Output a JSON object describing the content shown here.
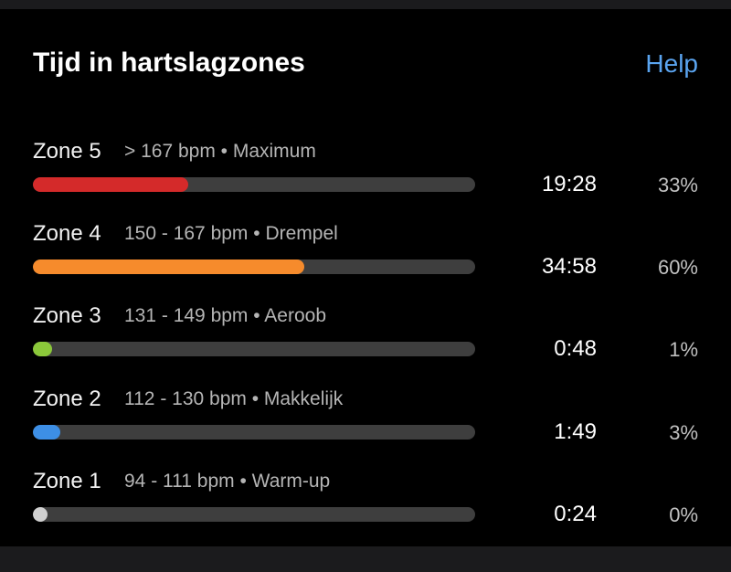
{
  "header": {
    "title": "Tijd in hartslagzones",
    "help": "Help"
  },
  "zones": [
    {
      "name": "Zone 5",
      "range": "> 167 bpm • Maximum",
      "time": "19:28",
      "percent": {
        "value": 33,
        "label": "33%"
      },
      "color": "#d42a2a"
    },
    {
      "name": "Zone 4",
      "range": "150 - 167 bpm • Drempel",
      "time": "34:58",
      "percent": {
        "value": 60,
        "label": "60%"
      },
      "color": "#f68b2c"
    },
    {
      "name": "Zone 3",
      "range": "131 - 149 bpm • Aeroob",
      "time": "0:48",
      "percent": {
        "value": 1,
        "label": "1%"
      },
      "color": "#8bc83a"
    },
    {
      "name": "Zone 2",
      "range": "112 - 130 bpm • Makkelijk",
      "time": "1:49",
      "percent": {
        "value": 3,
        "label": "3%"
      },
      "color": "#3d8fe6"
    },
    {
      "name": "Zone 1",
      "range": "94 - 111 bpm • Warm-up",
      "time": "0:24",
      "percent": {
        "value": 0,
        "label": "0%"
      },
      "color": "#d0d0d0"
    }
  ]
}
